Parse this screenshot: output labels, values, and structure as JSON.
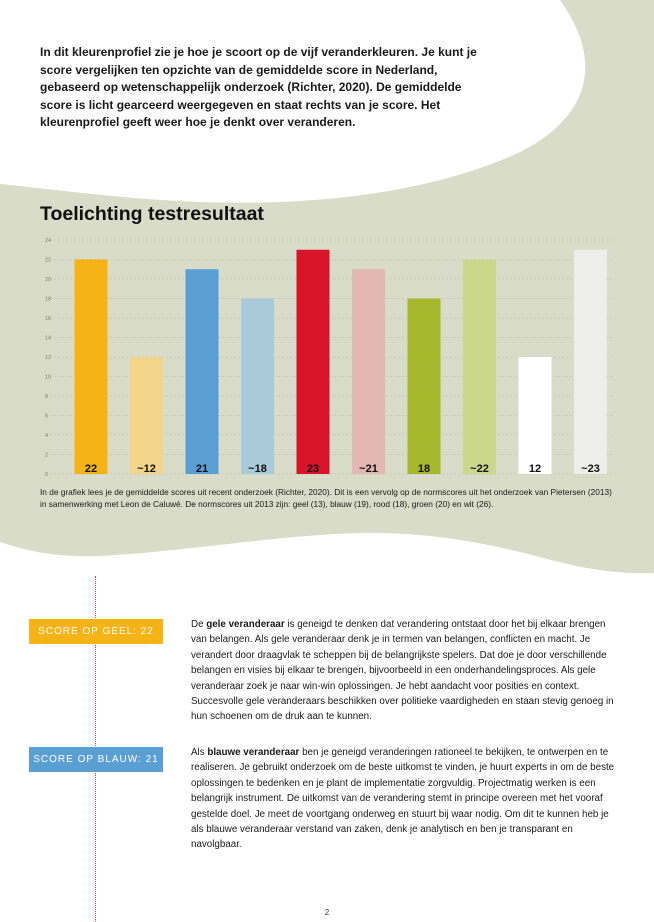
{
  "intro": {
    "text": "In dit kleurenprofiel zie je hoe je scoort op de vijf veranderkleuren. Je kunt je score vergelijken ten opzichte van de gemiddelde score in Nederland, gebaseerd op wetenschappelijk onderzoek (Richter, 2020). De gemiddelde score is licht gearceerd weergegeven en staat rechts van je score. Het kleurenprofiel geeft weer hoe je denkt over veranderen."
  },
  "chart_data": {
    "type": "bar",
    "title": "Toelichting testresultaat",
    "xlabel": "",
    "ylabel": "",
    "ylim": [
      0,
      24
    ],
    "yticks": [
      0,
      2,
      4,
      6,
      8,
      10,
      12,
      14,
      16,
      18,
      20,
      22,
      24
    ],
    "grid": true,
    "bars": [
      {
        "value": 22,
        "label": "22",
        "color": "#f5b316",
        "shaded": false
      },
      {
        "value": 12,
        "label": "~12",
        "color": "#f2d58a",
        "shaded": true
      },
      {
        "value": 21,
        "label": "21",
        "color": "#5a9fd4",
        "shaded": false
      },
      {
        "value": 18,
        "label": "~18",
        "color": "#a9cad9",
        "shaded": true
      },
      {
        "value": 23,
        "label": "23",
        "color": "#d8142b",
        "shaded": false
      },
      {
        "value": 21,
        "label": "~21",
        "color": "#e3b7b4",
        "shaded": true
      },
      {
        "value": 18,
        "label": "18",
        "color": "#a5b72a",
        "shaded": false
      },
      {
        "value": 22,
        "label": "~22",
        "color": "#cbd88c",
        "shaded": true
      },
      {
        "value": 12,
        "label": "12",
        "color": "#ffffff",
        "shaded": false
      },
      {
        "value": 23,
        "label": "~23",
        "color": "#ededea",
        "shaded": true
      }
    ]
  },
  "caption": {
    "text": "In de grafiek lees je de gemiddelde scores uit recent onderzoek (Richter, 2020). Dit is een vervolg op de normscores uit het onderzoek van Pietersen (2013) in samenwerking met Leon de Caluwé. De normscores uit 2013 zijn: geel (13), blauw (19), rood (18), groen (20) en wit (26)."
  },
  "sections": {
    "geel": {
      "badge": "SCORE OP GEEL: 22",
      "bold": "gele veranderaar",
      "pre": "De ",
      "post": " is geneigd te denken dat verandering ontstaat door het bij elkaar brengen van belangen. Als gele veranderaar denk je in termen van belangen, conflicten en macht. Je verandert door draagvlak te scheppen bij de belangrijkste spelers. Dat doe je door verschillende belangen en visies bij elkaar te brengen, bijvoorbeeld in een onderhandelingsproces. Als gele veranderaar zoek je naar win-win oplossingen. Je hebt aandacht voor posities en context. Succesvolle gele veranderaars beschikken over politieke vaardigheden en staan stevig genoeg in hun schoenen om de druk aan te kunnen."
    },
    "blauw": {
      "badge": "SCORE OP BLAUW: 21",
      "bold": "blauwe veranderaar",
      "pre": "Als ",
      "post": " ben je geneigd veranderingen rationeel te bekijken, te ontwerpen en te realiseren. Je gebruikt onderzoek om de beste uitkomst te vinden, je huurt experts in om de beste oplossingen te bedenken en je plant de implementatie zorgvuldig. Projectmatig werken is een belangrijk instrument. De uitkomst van de verandering stemt in principe overeen met het vooraf gestelde doel. Je meet de voortgang onderweg en stuurt bij waar nodig. Om dit te kunnen heb je als blauwe veranderaar verstand van zaken, denk je analytisch en ben je transparant en navolgbaar."
    }
  },
  "page": {
    "number": "2"
  },
  "colors": {
    "background_blob": "#d8dcc8",
    "accent_red": "#d43a3a"
  }
}
